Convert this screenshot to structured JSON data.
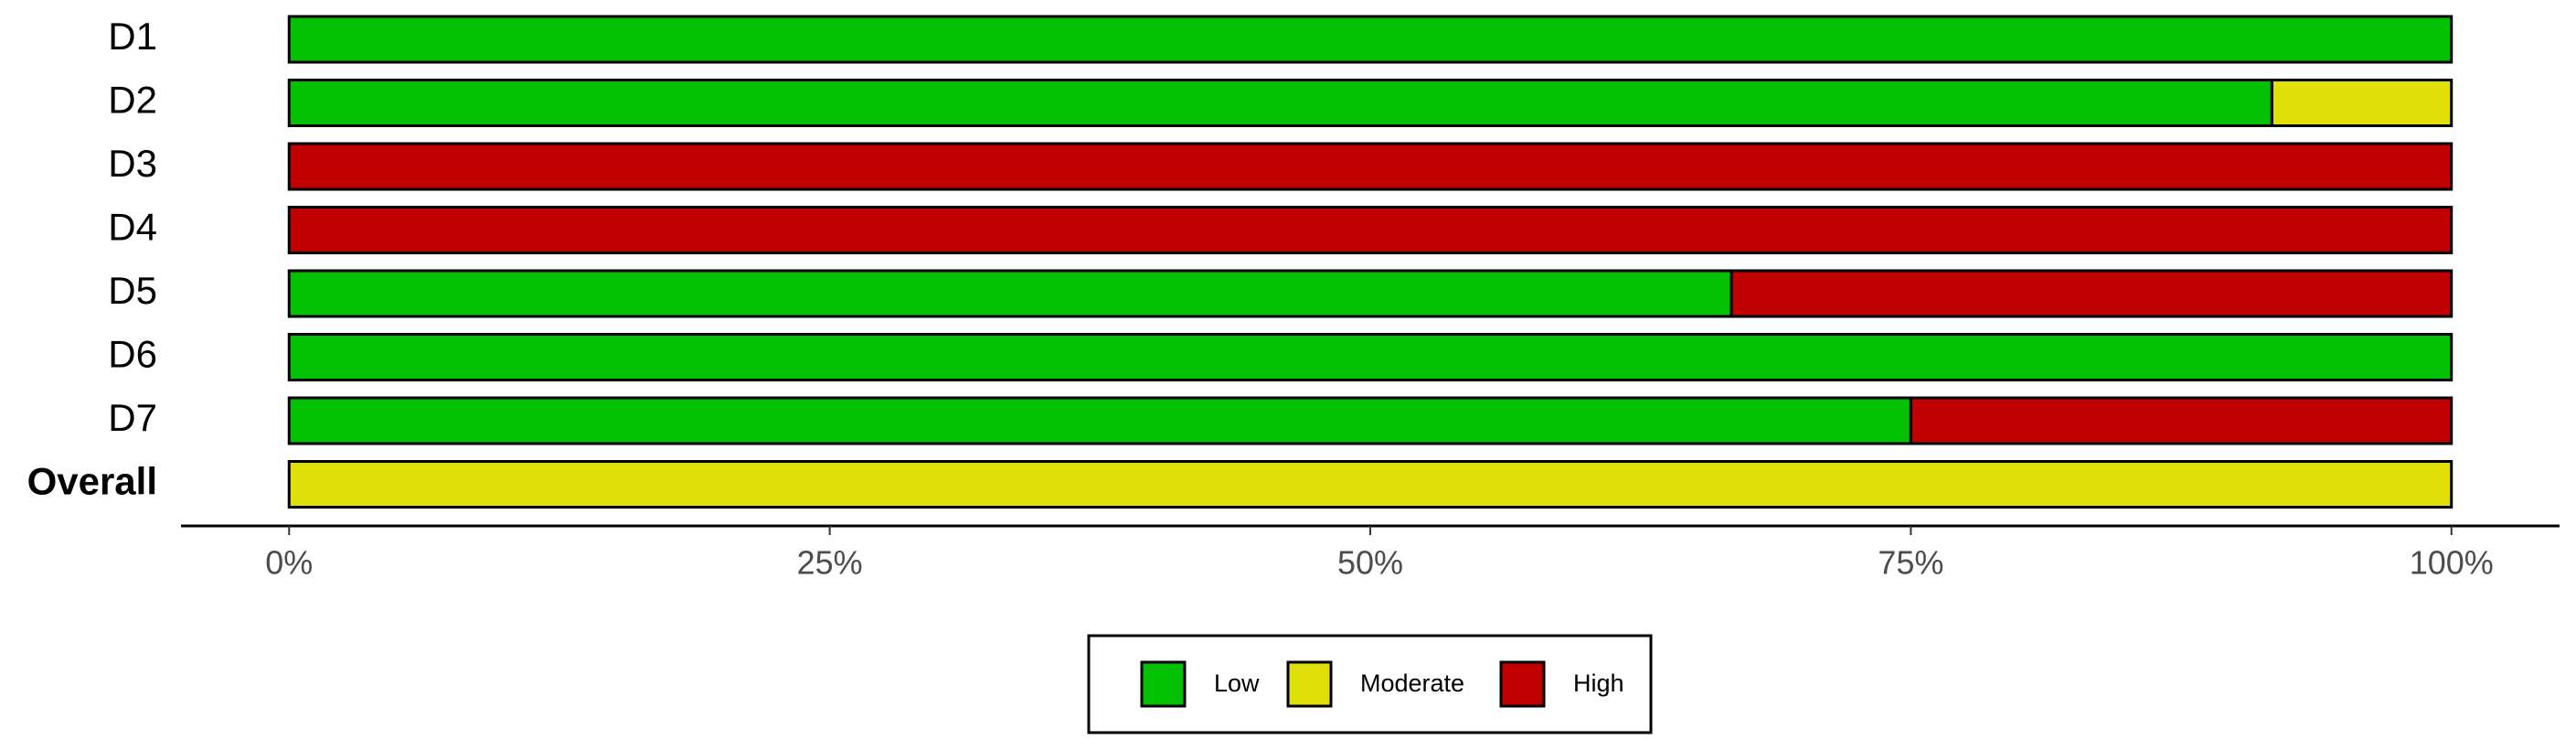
{
  "chart_data": {
    "type": "stacked-bar-horizontal",
    "categories": [
      "D1",
      "D2",
      "D3",
      "D4",
      "D5",
      "D6",
      "D7",
      "Overall"
    ],
    "series": [
      {
        "name": "Low",
        "color": "#03c003",
        "values": [
          100,
          91.7,
          0,
          0,
          66.7,
          100,
          75,
          0
        ]
      },
      {
        "name": "Moderate",
        "color": "#e1df09",
        "values": [
          0,
          8.3,
          0,
          0,
          0,
          0,
          0,
          100
        ]
      },
      {
        "name": "High",
        "color": "#c00000",
        "values": [
          0,
          0,
          100,
          100,
          33.3,
          0,
          25,
          0
        ]
      }
    ],
    "xlim": [
      -5,
      105
    ],
    "xticks": [
      {
        "value": 0,
        "label": "0%"
      },
      {
        "value": 25,
        "label": "25%"
      },
      {
        "value": 50,
        "label": "50%"
      },
      {
        "value": 75,
        "label": "75%"
      },
      {
        "value": 100,
        "label": "100%"
      }
    ],
    "legend": "bottom"
  }
}
